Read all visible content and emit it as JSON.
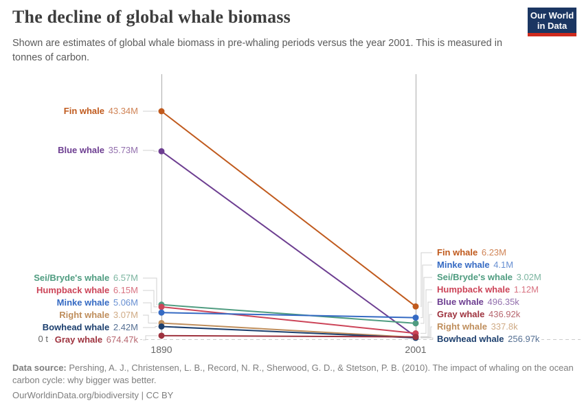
{
  "header": {
    "title": "The decline of global whale biomass",
    "subtitle": "Shown are estimates of global whale biomass in pre-whaling periods versus the year 2001. This is measured in tonnes of carbon.",
    "logo_line1": "Our World",
    "logo_line2": "in Data",
    "logo_bg_color": "#1b3662",
    "logo_accent_color": "#cf2a1d"
  },
  "chart_data": {
    "type": "line",
    "subtype": "slope",
    "x_labels": [
      "1890",
      "2001"
    ],
    "zero_label": "0 t",
    "unit": "tonnes of carbon",
    "grid": "off",
    "series": [
      {
        "name": "Fin whale",
        "color": "#c05a1d",
        "values": [
          43340000,
          6230000
        ],
        "start_label": "43.34M",
        "end_label": "6.23M"
      },
      {
        "name": "Blue whale",
        "color": "#6d3e91",
        "values": [
          35730000,
          496350
        ],
        "start_label": "35.73M",
        "end_label": "496.35k"
      },
      {
        "name": "Sei/Bryde's whale",
        "color": "#4f9c80",
        "values": [
          6570000,
          3020000
        ],
        "start_label": "6.57M",
        "end_label": "3.02M"
      },
      {
        "name": "Humpback whale",
        "color": "#cc4458",
        "values": [
          6150000,
          1120000
        ],
        "start_label": "6.15M",
        "end_label": "1.12M"
      },
      {
        "name": "Minke whale",
        "color": "#356ac3",
        "values": [
          5060000,
          4100000
        ],
        "start_label": "5.06M",
        "end_label": "4.1M"
      },
      {
        "name": "Right whale",
        "color": "#bf8e5c",
        "values": [
          3070000,
          337800
        ],
        "start_label": "3.07M",
        "end_label": "337.8k"
      },
      {
        "name": "Bowhead whale",
        "color": "#1c3f6e",
        "values": [
          2420000,
          256970
        ],
        "start_label": "2.42M",
        "end_label": "256.97k"
      },
      {
        "name": "Gray whale",
        "color": "#9e323e",
        "values": [
          674470,
          436920
        ],
        "start_label": "674.47k",
        "end_label": "436.92k"
      }
    ]
  },
  "footer": {
    "source_prefix": "Data source:",
    "source_text": " Pershing, A. J., Christensen, L. B., Record, N. R., Sherwood, G. D., & Stetson, P. B. (2010). The impact of whaling on the ocean carbon cycle: why bigger was better.",
    "cc_line": "OurWorldinData.org/biodiversity | CC BY"
  }
}
